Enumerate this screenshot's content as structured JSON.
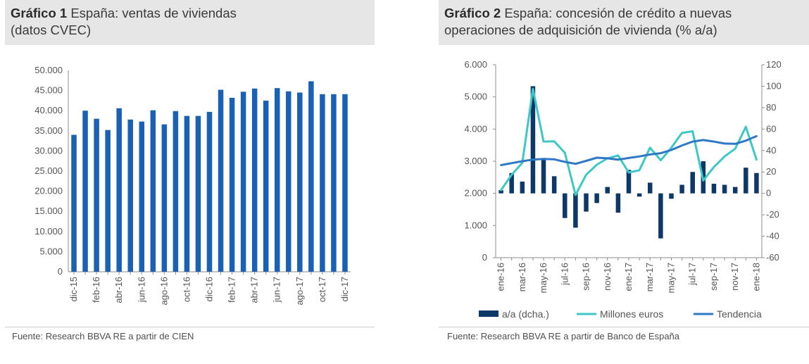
{
  "chart1": {
    "title_bold": "Gráfico 1",
    "title_rest": " España: ventas de viviendas",
    "title_line2": "(datos CVEC)",
    "source": "Fuente: Research BBVA RE a partir de CIEN",
    "chart_data": {
      "type": "bar",
      "title": "España: ventas de viviendas (datos CVEC)",
      "xlabel": "",
      "ylabel": "",
      "ylim": [
        0,
        50000
      ],
      "yticks": [
        0,
        5000,
        10000,
        15000,
        20000,
        25000,
        30000,
        35000,
        40000,
        45000,
        50000
      ],
      "ytick_labels": [
        "0",
        "5.000",
        "10.000",
        "15.000",
        "20.000",
        "25.000",
        "30.000",
        "35.000",
        "40.000",
        "45.000",
        "50.000"
      ],
      "categories": [
        "dic-15",
        "ene-16",
        "feb-16",
        "mar-16",
        "abr-16",
        "may-16",
        "jun-16",
        "jul-16",
        "ago-16",
        "sep-16",
        "oct-16",
        "nov-16",
        "dic-16",
        "ene-17",
        "feb-17",
        "mar-17",
        "abr-17",
        "may-17",
        "jun-17",
        "jul-17",
        "ago-17",
        "sep-17",
        "oct-17",
        "nov-17",
        "dic-17"
      ],
      "shown_labels": [
        "dic-15",
        "feb-16",
        "abr-16",
        "jun-16",
        "ago-16",
        "oct-16",
        "dic-16",
        "feb-17",
        "abr-17",
        "jun-17",
        "ago-17",
        "oct-17",
        "dic-17"
      ],
      "values": [
        34000,
        40000,
        38000,
        35200,
        40600,
        37800,
        37300,
        40100,
        36600,
        39900,
        38700,
        38700,
        39700,
        45200,
        43200,
        44700,
        45500,
        42500,
        45600,
        44800,
        44500,
        47300,
        44100,
        44100,
        44100
      ],
      "color": "#1a60b5"
    }
  },
  "chart2": {
    "title_bold": "Gráfico 2",
    "title_rest": " España: concesión de crédito a nuevas",
    "title_line2": "operaciones de adquisición de vivienda (% a/a)",
    "source": "Fuente: Research BBVA RE a partir de Banco de España",
    "chart_data": {
      "type": "bar+line",
      "title": "España: concesión de crédito a nuevas operaciones de adquisición de vivienda (% a/a)",
      "left_axis": {
        "ylim": [
          0,
          6000
        ],
        "ticks": [
          0,
          1000,
          2000,
          3000,
          4000,
          5000,
          6000
        ],
        "tick_labels": [
          "0",
          "1.000",
          "2.000",
          "3.000",
          "4.000",
          "5.000",
          "6.000"
        ]
      },
      "right_axis": {
        "ylim": [
          -60,
          120
        ],
        "ticks": [
          -60,
          -40,
          -20,
          0,
          20,
          40,
          60,
          80,
          100,
          120
        ],
        "tick_labels": [
          "-60",
          "-40",
          "-20",
          "0",
          "20",
          "40",
          "60",
          "80",
          "100",
          "120"
        ]
      },
      "categories": [
        "ene-16",
        "feb-16",
        "mar-16",
        "abr-16",
        "may-16",
        "jun-16",
        "jul-16",
        "ago-16",
        "sep-16",
        "oct-16",
        "nov-16",
        "dic-16",
        "ene-17",
        "feb-17",
        "mar-17",
        "abr-17",
        "may-17",
        "jun-17",
        "jul-17",
        "ago-17",
        "sep-17",
        "oct-17",
        "nov-17",
        "dic-17",
        "ene-18"
      ],
      "shown_labels": [
        "ene-16",
        "mar-16",
        "may-16",
        "jul-16",
        "sep-16",
        "nov-16",
        "ene-17",
        "mar-17",
        "may-17",
        "jul-17",
        "sep-17",
        "nov-17",
        "ene-18"
      ],
      "series": [
        {
          "name": "a/a (dcha.)",
          "type": "bar",
          "axis": "right",
          "color": "#0e3868",
          "values": [
            3,
            19,
            11,
            100,
            33,
            16,
            -23,
            -32,
            -17,
            -9,
            6,
            -18,
            22,
            -3,
            10,
            -42,
            -5,
            8,
            20,
            30,
            9,
            8,
            6,
            24,
            19
          ]
        },
        {
          "name": "Millones euros",
          "type": "line",
          "axis": "left",
          "color": "#3ec7c7",
          "values": [
            2100,
            2580,
            2950,
            5250,
            3610,
            3620,
            3260,
            1950,
            2580,
            2890,
            3090,
            3180,
            2650,
            2720,
            3420,
            3030,
            3420,
            3880,
            3930,
            2400,
            2820,
            3150,
            3390,
            4070,
            3050
          ]
        },
        {
          "name": "Tendencia",
          "type": "line",
          "axis": "left",
          "color": "#2e78c6",
          "values": [
            2880,
            2940,
            3000,
            3050,
            3070,
            3060,
            2980,
            2920,
            3010,
            3110,
            3090,
            3050,
            3100,
            3150,
            3210,
            3250,
            3350,
            3490,
            3610,
            3660,
            3610,
            3550,
            3540,
            3640,
            3780
          ]
        }
      ],
      "legend": [
        "a/a (dcha.)",
        "Millones euros",
        "Tendencia"
      ],
      "legend_position": "bottom"
    }
  }
}
